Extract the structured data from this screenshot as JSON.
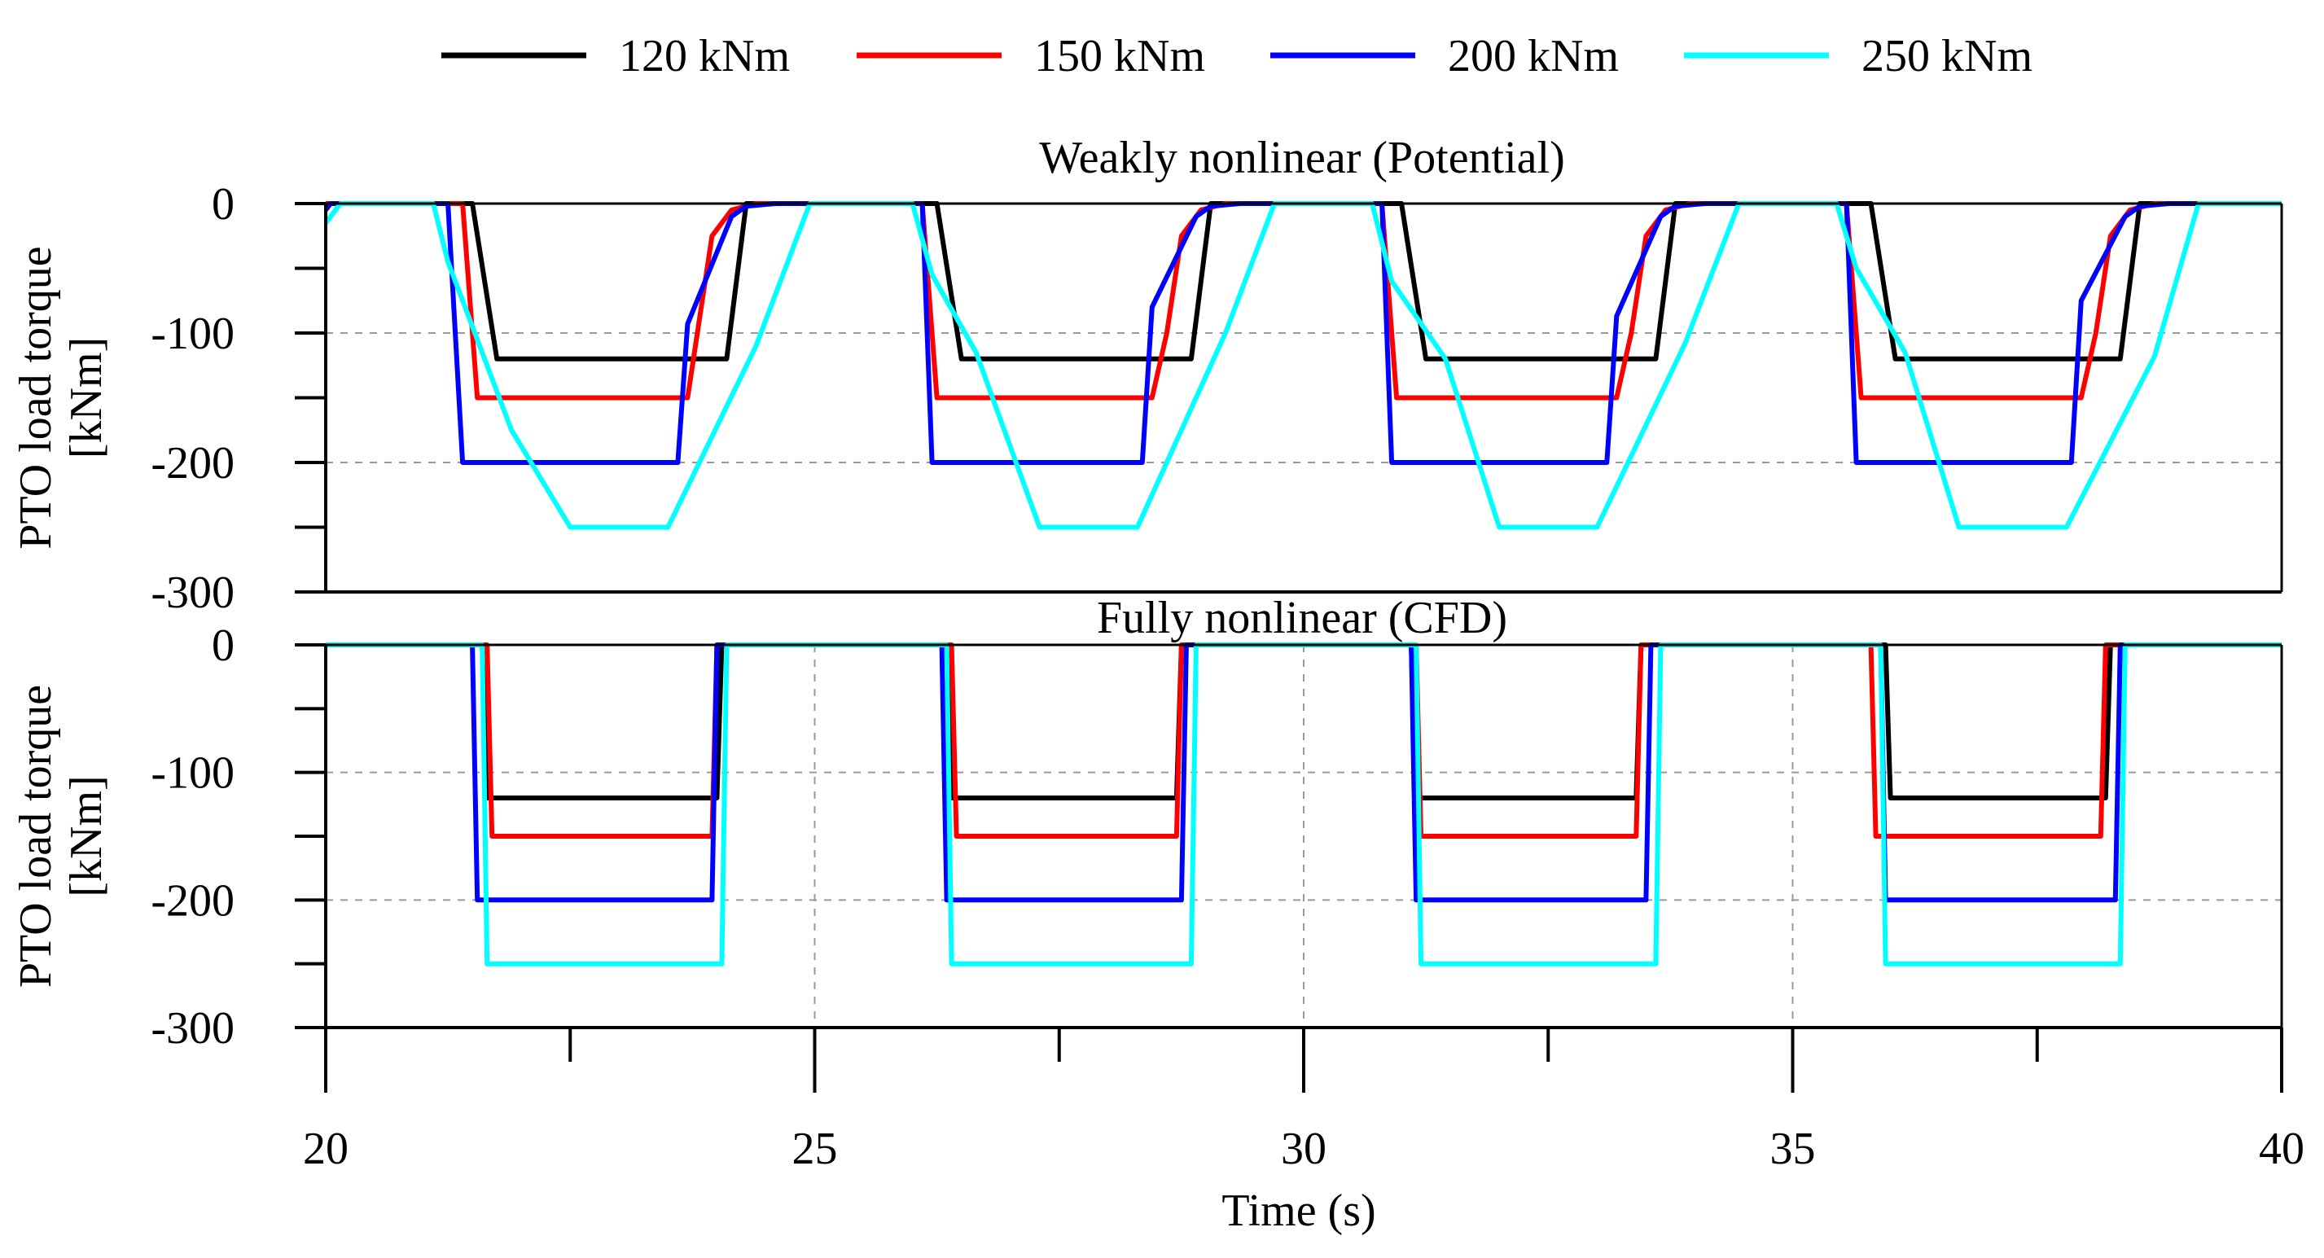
{
  "legend": {
    "placement": "top-center",
    "items": [
      {
        "label": "120 kNm",
        "color": "#000000"
      },
      {
        "label": "150 kNm",
        "color": "#ff0000"
      },
      {
        "label": "200 kNm",
        "color": "#0000ff"
      },
      {
        "label": "250 kNm",
        "color": "#00ffff"
      }
    ]
  },
  "chart_data": [
    {
      "type": "line",
      "title": "Weakly nonlinear (Potential)",
      "xlabel": "Time (s)",
      "ylabel": "PTO load torque [kNm]",
      "xlim": [
        20,
        40
      ],
      "ylim": [
        -300,
        0
      ],
      "xticks": [
        20,
        25,
        30,
        35,
        40
      ],
      "yticks": [
        0,
        -100,
        -200,
        -300
      ],
      "grid": "dashed",
      "series": [
        {
          "name": "120 kNm",
          "color": "#000000",
          "x": [
            20,
            21.5,
            21.75,
            24.1,
            24.3,
            26.25,
            26.5,
            28.85,
            29.05,
            31.0,
            31.25,
            33.6,
            33.8,
            35.8,
            36.05,
            38.35,
            38.55,
            40
          ],
          "y": [
            0,
            0,
            -120,
            -120,
            0,
            0,
            -120,
            -120,
            0,
            0,
            -120,
            -120,
            0,
            0,
            -120,
            -120,
            0,
            0
          ]
        },
        {
          "name": "150 kNm",
          "color": "#ff0000",
          "x": [
            20,
            21.4,
            21.55,
            23.7,
            23.8,
            23.95,
            24.15,
            24.4,
            26.1,
            26.25,
            28.45,
            28.6,
            28.75,
            28.95,
            29.2,
            30.8,
            30.95,
            33.2,
            33.35,
            33.5,
            33.7,
            33.95,
            35.55,
            35.7,
            37.95,
            38.1,
            38.25,
            38.45,
            38.7,
            40
          ],
          "y": [
            0,
            0,
            -150,
            -150,
            -100,
            -25,
            -5,
            0,
            0,
            -150,
            -150,
            -100,
            -25,
            -5,
            0,
            0,
            -150,
            -150,
            -100,
            -25,
            -5,
            0,
            0,
            -150,
            -150,
            -100,
            -25,
            -5,
            0,
            0
          ]
        },
        {
          "name": "200 kNm",
          "color": "#0000ff",
          "x": [
            20,
            20.05,
            21.25,
            21.4,
            23.6,
            23.7,
            24.15,
            24.3,
            24.6,
            26.1,
            26.2,
            28.35,
            28.45,
            28.9,
            29.05,
            29.35,
            30.8,
            30.9,
            33.1,
            33.2,
            33.65,
            33.8,
            34.1,
            35.55,
            35.65,
            37.85,
            37.95,
            38.4,
            38.55,
            38.85,
            40
          ],
          "y": [
            -5,
            0,
            0,
            -200,
            -200,
            -93,
            -10,
            -2,
            0,
            0,
            -200,
            -200,
            -80,
            -10,
            -2,
            0,
            0,
            -200,
            -200,
            -87,
            -10,
            -2,
            0,
            0,
            -200,
            -200,
            -75,
            -10,
            -2,
            0,
            0
          ]
        },
        {
          "name": "250 kNm",
          "color": "#00ffff",
          "x": [
            20,
            20.15,
            21.1,
            21.25,
            21.9,
            22.5,
            23.5,
            24.4,
            24.95,
            26.0,
            26.2,
            26.65,
            27.3,
            28.3,
            29.2,
            29.7,
            30.7,
            30.9,
            31.45,
            32.0,
            33.0,
            33.9,
            34.45,
            35.45,
            35.65,
            36.15,
            36.7,
            37.8,
            38.7,
            39.15,
            40
          ],
          "y": [
            -15,
            0,
            0,
            -45,
            -175,
            -250,
            -250,
            -110,
            0,
            0,
            -55,
            -115,
            -250,
            -250,
            -100,
            0,
            0,
            -60,
            -120,
            -250,
            -250,
            -108,
            0,
            0,
            -50,
            -115,
            -250,
            -250,
            -118,
            0,
            0
          ]
        }
      ]
    },
    {
      "type": "line",
      "title": "Fully nonlinear (CFD)",
      "xlabel": "Time (s)",
      "ylabel": "PTO load torque [kNm]",
      "xlim": [
        20,
        40
      ],
      "ylim": [
        -300,
        0
      ],
      "xticks": [
        20,
        25,
        30,
        35,
        40
      ],
      "yticks": [
        0,
        -100,
        -200,
        -300
      ],
      "grid": "dashed",
      "series": [
        {
          "name": "120 kNm",
          "color": "#000000",
          "x": [
            20,
            21.6,
            21.65,
            24.0,
            24.05,
            26.35,
            26.4,
            28.7,
            28.75,
            31.1,
            31.15,
            33.4,
            33.45,
            35.95,
            36.0,
            38.2,
            38.25,
            40
          ],
          "y": [
            0,
            0,
            -120,
            -120,
            0,
            0,
            -120,
            -120,
            0,
            0,
            -120,
            -120,
            0,
            0,
            -120,
            -120,
            0,
            0
          ]
        },
        {
          "name": "150 kNm",
          "color": "#ff0000",
          "x": [
            20,
            21.65,
            21.7,
            23.95,
            24.0,
            26.4,
            26.45,
            28.7,
            28.75,
            31.15,
            31.2,
            33.4,
            33.45,
            35.8,
            35.85,
            38.15,
            38.2,
            40
          ],
          "y": [
            0,
            0,
            -150,
            -150,
            0,
            0,
            -150,
            -150,
            0,
            0,
            -150,
            -150,
            0,
            0,
            -150,
            -150,
            0,
            0
          ]
        },
        {
          "name": "200 kNm",
          "color": "#0000ff",
          "x": [
            20,
            21.5,
            21.55,
            23.95,
            24.0,
            26.3,
            26.35,
            28.75,
            28.8,
            31.1,
            31.15,
            33.5,
            33.55,
            35.9,
            35.95,
            38.3,
            38.35,
            40
          ],
          "y": [
            0,
            0,
            -200,
            -200,
            0,
            0,
            -200,
            -200,
            0,
            0,
            -200,
            -200,
            0,
            0,
            -200,
            -200,
            0,
            0
          ]
        },
        {
          "name": "250 kNm",
          "color": "#00ffff",
          "x": [
            20,
            21.6,
            21.65,
            24.05,
            24.1,
            26.35,
            26.4,
            28.85,
            28.9,
            31.15,
            31.2,
            33.6,
            33.65,
            35.9,
            35.95,
            38.35,
            38.4,
            40
          ],
          "y": [
            0,
            0,
            -250,
            -250,
            0,
            0,
            -250,
            -250,
            0,
            0,
            -250,
            -250,
            0,
            0,
            -250,
            -250,
            0,
            0
          ]
        }
      ]
    }
  ]
}
